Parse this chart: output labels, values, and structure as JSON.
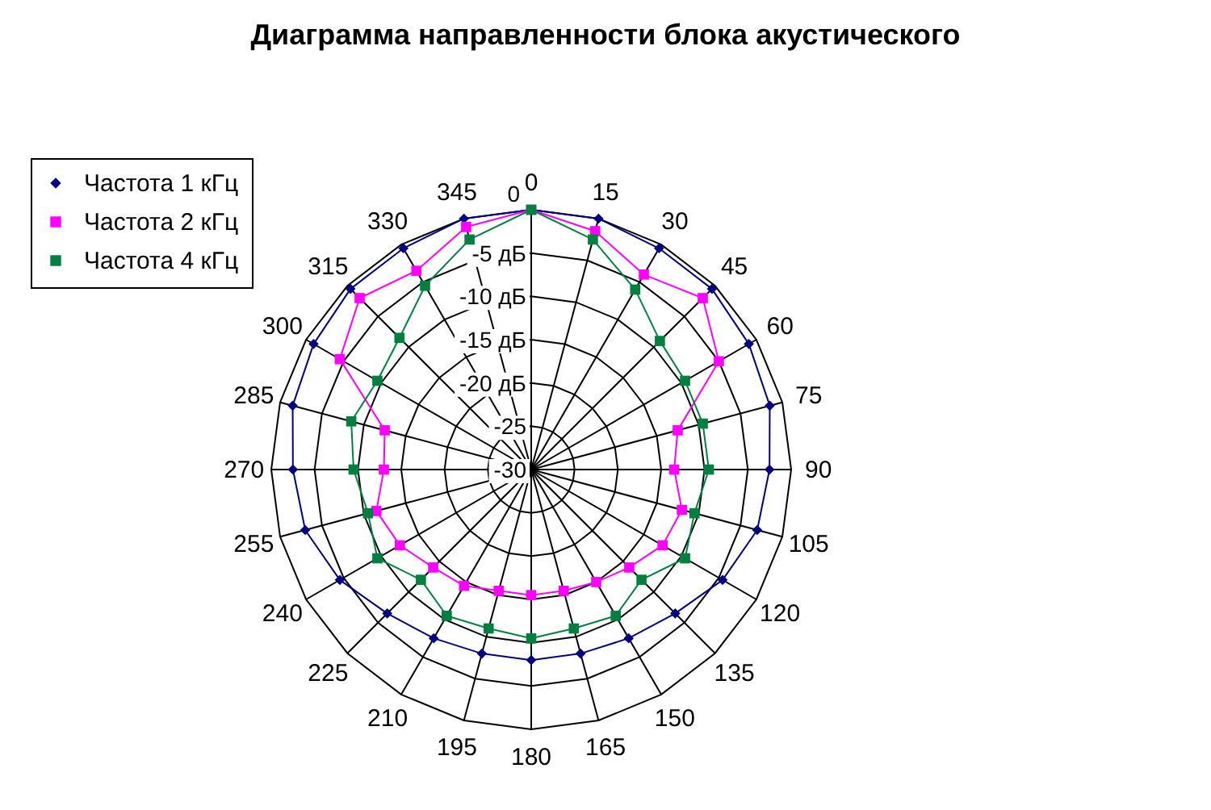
{
  "chart_data": {
    "type": "radar",
    "title": "Диаграмма направленности блока акустического",
    "categories": [
      "0",
      "15",
      "30",
      "45",
      "60",
      "75",
      "90",
      "105",
      "120",
      "135",
      "150",
      "165",
      "180",
      "195",
      "210",
      "225",
      "240",
      "255",
      "270",
      "285",
      "300",
      "315",
      "330",
      "345"
    ],
    "ylim": [
      -30,
      0
    ],
    "yticks": [
      0,
      {
        "value": -5,
        "label": "-5 дБ"
      },
      {
        "value": -10,
        "label": "-10 дБ"
      },
      {
        "value": -15,
        "label": "-15 дБ"
      },
      {
        "value": -20,
        "label": "-20 дБ"
      },
      -25,
      -30
    ],
    "grid": true,
    "legend": "top left",
    "series": [
      {
        "name": "Частота 1 кГц",
        "color": "#000080",
        "marker": "diamond",
        "values": [
          0,
          0,
          -0.5,
          -0.5,
          -1,
          -1.5,
          -2.5,
          -3,
          -4.5,
          -6.5,
          -7.5,
          -8,
          -8,
          -8,
          -7.5,
          -6.5,
          -4.5,
          -3,
          -2.5,
          -1.5,
          -1,
          -0.5,
          -0.5,
          0
        ]
      },
      {
        "name": "Частота 2 кГц",
        "color": "#ff00ff",
        "marker": "square",
        "values": [
          0,
          -1.5,
          -4,
          -2,
          -5,
          -12.5,
          -13.5,
          -12,
          -12.5,
          -14,
          -15,
          -15.5,
          -15.5,
          -15.5,
          -14.5,
          -14,
          -12.5,
          -11.5,
          -13,
          -12.5,
          -4.5,
          -2,
          -3.5,
          -1
        ]
      },
      {
        "name": "Частота 4 кГц",
        "color": "#008040",
        "marker": "square",
        "values": [
          0,
          -2.5,
          -6,
          -9,
          -9.5,
          -9.5,
          -9.5,
          -10.5,
          -9.5,
          -12,
          -10.5,
          -11,
          -10.5,
          -11,
          -10.5,
          -12,
          -9.5,
          -10.5,
          -9.5,
          -8.5,
          -9.5,
          -8.5,
          -5.5,
          -2.5
        ]
      }
    ]
  }
}
